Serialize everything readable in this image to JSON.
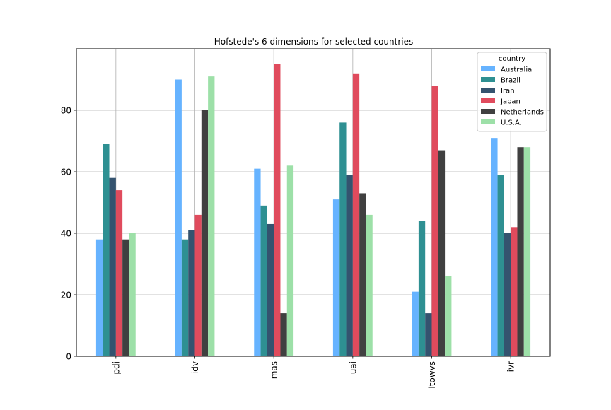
{
  "chart_data": {
    "type": "bar",
    "title": "Hofstede's 6 dimensions for selected countries",
    "xlabel": "",
    "ylabel": "",
    "categories": [
      "pdi",
      "idv",
      "mas",
      "uai",
      "ltowvs",
      "ivr"
    ],
    "ylim": [
      0,
      100
    ],
    "yticks": [
      0,
      20,
      40,
      60,
      80
    ],
    "grid": true,
    "legend": {
      "title": "country",
      "placement": "top-right"
    },
    "series": [
      {
        "name": "Australia",
        "color": "#66b3ff",
        "values": [
          38,
          90,
          61,
          51,
          21,
          71
        ]
      },
      {
        "name": "Brazil",
        "color": "#2e9092",
        "values": [
          69,
          38,
          49,
          76,
          44,
          59
        ]
      },
      {
        "name": "Iran",
        "color": "#34536f",
        "values": [
          58,
          41,
          43,
          59,
          14,
          40
        ]
      },
      {
        "name": "Japan",
        "color": "#e04b5d",
        "values": [
          54,
          46,
          95,
          92,
          88,
          42
        ]
      },
      {
        "name": "Netherlands",
        "color": "#404040",
        "values": [
          38,
          80,
          14,
          53,
          67,
          68
        ]
      },
      {
        "name": "U.S.A.",
        "color": "#9de0a8",
        "values": [
          40,
          91,
          62,
          46,
          26,
          68
        ]
      }
    ]
  }
}
